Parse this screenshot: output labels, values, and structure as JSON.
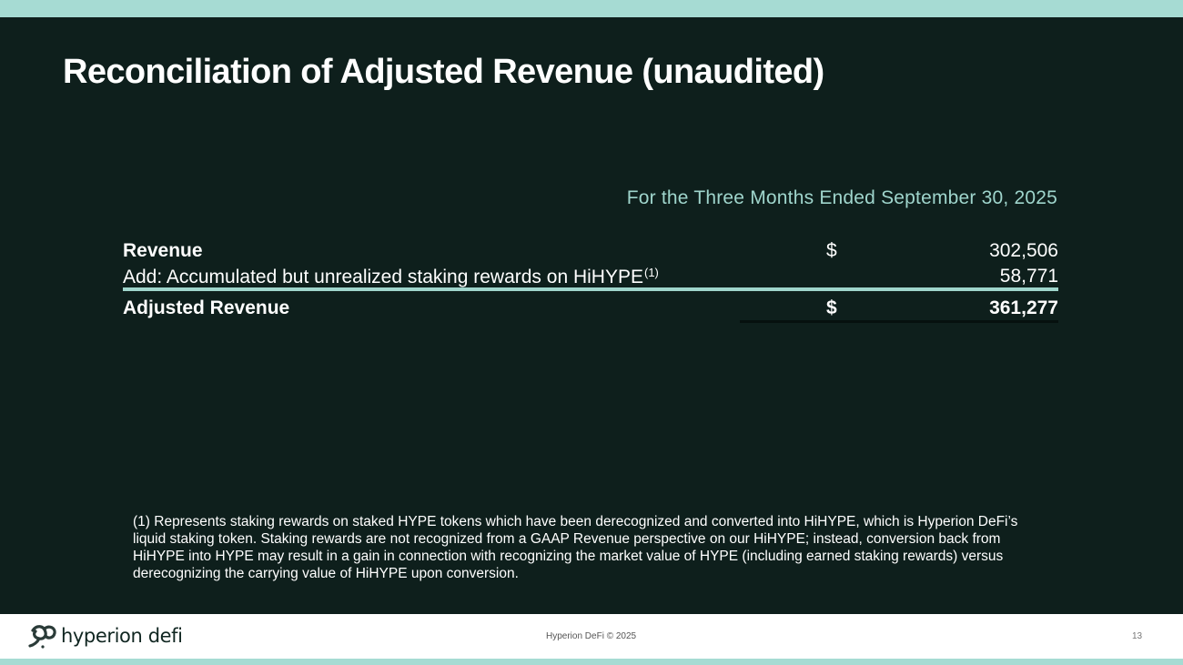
{
  "title": "Reconciliation of Adjusted Revenue (unaudited)",
  "table": {
    "period_header": "For the Three Months Ended September 30, 2025",
    "rows": [
      {
        "label": "Revenue",
        "currency": "$",
        "amount": "302,506"
      },
      {
        "label": "Add: Accumulated but unrealized staking rewards on HiHYPE",
        "footnote_ref": "(1)",
        "amount": "58,771"
      },
      {
        "label": "Adjusted Revenue",
        "currency": "$",
        "amount": "361,277"
      }
    ]
  },
  "footnote": "(1) Represents staking rewards on staked HYPE tokens which have been derecognized and converted into HiHYPE, which is Hyperion DeFi’s liquid staking token. Staking rewards are not recognized from a GAAP Revenue perspective on our HiHYPE; instead, conversion back from HiHYPE into HYPE may result in a gain in connection with recognizing the market value of HYPE (including earned staking rewards) versus derecognizing the carrying value of HiHYPE upon conversion.",
  "footer": {
    "logo_text": "hyperion defi",
    "copyright": "Hyperion DeFi © 2025",
    "page_number": "13"
  },
  "colors": {
    "background": "#0e1f1c",
    "accent": "#a6dbd3",
    "period_text": "#9fd5cc"
  }
}
